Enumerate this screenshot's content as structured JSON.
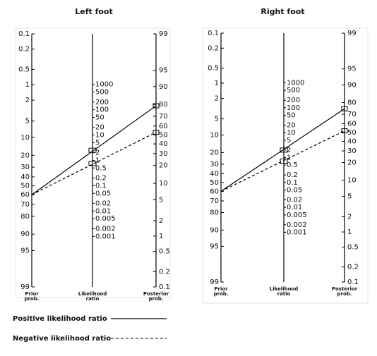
{
  "panels": [
    {
      "title": "Left foot",
      "prior": 60,
      "posterior_positive": 79,
      "posterior_negative": 53
    },
    {
      "title": "Right foot",
      "prior": 60,
      "posterior_positive": 75,
      "posterior_negative": 52
    }
  ],
  "prior_scale": [
    0.1,
    0.2,
    0.5,
    1,
    2,
    5,
    10,
    20,
    30,
    40,
    50,
    60,
    70,
    80,
    90,
    95,
    99
  ],
  "posterior_scale": [
    99,
    95,
    90,
    80,
    70,
    60,
    50,
    40,
    30,
    20,
    10,
    5,
    2,
    1,
    0.5,
    0.2,
    0.1
  ],
  "lr_scale": [
    1000,
    500,
    200,
    100,
    50,
    20,
    10,
    5,
    2,
    1,
    0.5,
    0.2,
    0.1,
    0.05,
    0.02,
    0.01,
    0.005,
    0.002,
    0.001
  ],
  "axis_labels": {
    "prior": [
      "Prior",
      "prob."
    ],
    "lr": [
      "Likelihood",
      "ratio"
    ],
    "posterior": [
      "Posterior",
      "prob."
    ]
  },
  "legend": {
    "positive": "Positive likelihood ratio",
    "negative": "Negative likelihood ratio"
  }
}
